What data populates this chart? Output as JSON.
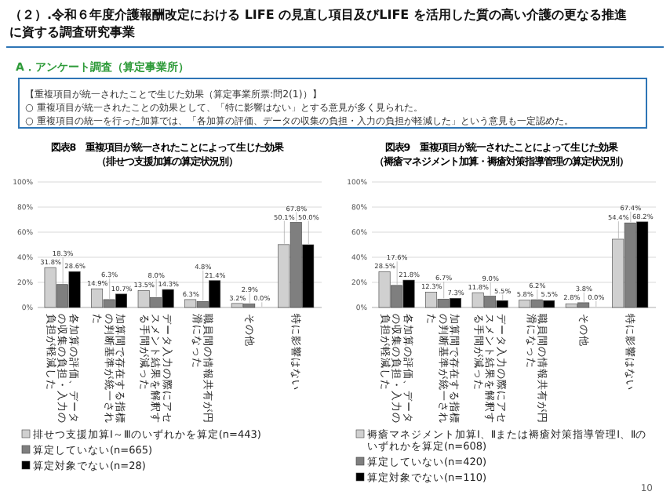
{
  "chart_data": [
    {
      "type": "other",
      "title": "（２）.令和６年度介護報酬改定における LIFE の見直し項目及びLIFE を活用した質の高い介護の更なる推進に資する調査研究事業",
      "subtitle": "A．アンケート調査（算定事業所）",
      "annotations": [
        "【重複項目が統一されたことで生じた効果（算定事業所票:問2(1)）】",
        "○ 重複項目が統一されたことの効果として、「特に影響はない」とする意見が多く見られた。",
        "○ 重複項目の統一を行った加算では、「各加算の評価、データの収集の負担・入力の負担が軽減した」という意見も一定認めた。",
        "10"
      ]
    },
    {
      "type": "bar",
      "title": "図表8　重複項目が統一されたことによって生じた効果",
      "subtitle": "（排せつ支援加算の算定状況別）",
      "categories": [
        "各加算の評価、データの収集の負担・入力の負担が軽減した",
        "加算間で存在する指標の判断基準が統一された",
        "データ入力の際にアセスメント結果を解釈する手間が減った",
        "職員間の情報共有が円滑になった",
        "その他",
        "特に影響はない"
      ],
      "series": [
        {
          "name": "排せつ支援加算Ⅰ～Ⅲのいずれかを算定(n=443)",
          "color": "#d0d0d0",
          "values": [
            31.8,
            14.9,
            13.5,
            6.3,
            3.2,
            50.1
          ],
          "value_labels": [
            "31.8%",
            "14.9%",
            "13.5%",
            "6.3%",
            "3.2%",
            "50.1%"
          ]
        },
        {
          "name": "算定していない(n=665)",
          "color": "#7f7f7f",
          "values": [
            18.3,
            6.3,
            8.0,
            4.8,
            2.9,
            67.8
          ],
          "value_labels": [
            "18.3%",
            "6.3%",
            "8.0%",
            "4.8%",
            "2.9%",
            "67.8%"
          ]
        },
        {
          "name": "算定対象でない(n=28)",
          "color": "#000000",
          "values": [
            28.6,
            10.7,
            14.3,
            21.4,
            0.0,
            50.0
          ],
          "value_labels": [
            "28.6%",
            "10.7%",
            "14.3%",
            "21.4%",
            "0.0%",
            "50.0%"
          ]
        }
      ],
      "ylim": [
        0,
        100
      ],
      "yticks": [
        {
          "value": 0,
          "label": "0%"
        },
        {
          "value": 20,
          "label": "20%"
        },
        {
          "value": 40,
          "label": "40%"
        },
        {
          "value": 60,
          "label": "60%"
        },
        {
          "value": 80,
          "label": "80%"
        },
        {
          "value": 100,
          "label": "100%"
        }
      ],
      "grid": "y",
      "legend": "bottom"
    },
    {
      "type": "bar",
      "title": "図表9　重複項目が統一されたことによって生じた効果",
      "subtitle": "（褥瘡マネジメント加算・褥瘡対策指導管理の算定状況別）",
      "categories": [
        "各加算の評価、データの収集の負担・入力の負担が軽減した",
        "加算間で存在する指標の判断基準が統一された",
        "データ入力の際にアセスメント結果を解釈する手間が減った",
        "職員間の情報共有が円滑になった",
        "その他",
        "特に影響はない"
      ],
      "series": [
        {
          "name": "褥瘡マネジメント加算Ⅰ、Ⅱまたは褥瘡対策指導管理Ⅰ、Ⅱのいずれかを算定(n=608)",
          "color": "#d0d0d0",
          "values": [
            28.5,
            12.3,
            11.8,
            5.8,
            2.8,
            54.4
          ],
          "value_labels": [
            "28.5%",
            "12.3%",
            "11.8%",
            "5.8%",
            "2.8%",
            "54.4%"
          ]
        },
        {
          "name": "算定していない(n=420)",
          "color": "#7f7f7f",
          "values": [
            17.6,
            6.7,
            9.0,
            6.2,
            3.8,
            67.4
          ],
          "value_labels": [
            "17.6%",
            "6.7%",
            "9.0%",
            "6.2%",
            "3.8%",
            "67.4%"
          ]
        },
        {
          "name": "算定対象でない(n=110)",
          "color": "#000000",
          "values": [
            21.8,
            7.3,
            5.5,
            5.5,
            0.0,
            68.2
          ],
          "value_labels": [
            "21.8%",
            "7.3%",
            "5.5%",
            "5.5%",
            "0.0%",
            "68.2%"
          ]
        }
      ],
      "ylim": [
        0,
        100
      ],
      "yticks": [
        {
          "value": 0,
          "label": "0%"
        },
        {
          "value": 20,
          "label": "20%"
        },
        {
          "value": 40,
          "label": "40%"
        },
        {
          "value": 60,
          "label": "60%"
        },
        {
          "value": 80,
          "label": "80%"
        },
        {
          "value": 100,
          "label": "100%"
        }
      ],
      "grid": "y",
      "legend": "bottom"
    }
  ]
}
